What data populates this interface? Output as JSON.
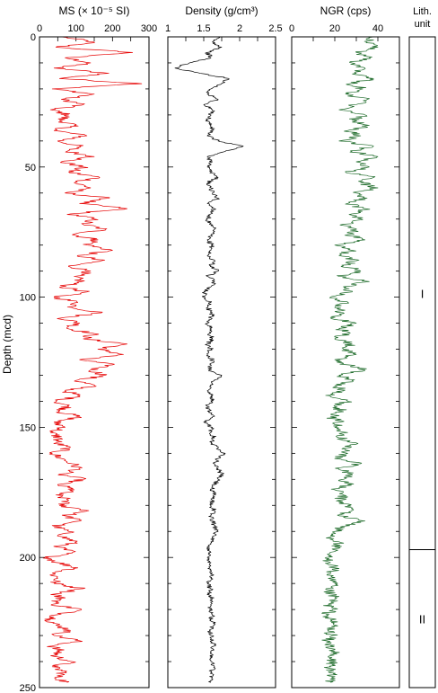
{
  "chart_data": {
    "type": "line",
    "y_axis": {
      "label": "Depth (mcd)",
      "range": [
        0,
        250
      ],
      "ticks": [
        0,
        50,
        100,
        150,
        200,
        250
      ],
      "minor_step": 10,
      "inverted": true
    },
    "panels": [
      {
        "title": "MS (× 10⁻⁵ SI)",
        "xlim": [
          0,
          300
        ],
        "ticks": [
          0,
          100,
          200,
          300
        ],
        "minor_step": 50,
        "color": "#e60000",
        "series": {
          "name": "",
          "depth": [
            0,
            2,
            4,
            6,
            8,
            10,
            12,
            14,
            16,
            18,
            20,
            22,
            24,
            26,
            28,
            30,
            32,
            34,
            36,
            38,
            40,
            42,
            44,
            46,
            48,
            50,
            52,
            54,
            56,
            58,
            60,
            62,
            64,
            66,
            68,
            70,
            72,
            74,
            76,
            78,
            80,
            82,
            84,
            86,
            88,
            90,
            92,
            94,
            96,
            98,
            100,
            102,
            104,
            106,
            108,
            110,
            112,
            114,
            116,
            118,
            120,
            122,
            124,
            126,
            128,
            130,
            132,
            134,
            136,
            138,
            140,
            142,
            144,
            146,
            148,
            150,
            152,
            154,
            156,
            158,
            160,
            162,
            164,
            166,
            168,
            170,
            172,
            174,
            176,
            178,
            180,
            182,
            184,
            186,
            188,
            190,
            192,
            194,
            196,
            198,
            200,
            202,
            204,
            206,
            208,
            210,
            212,
            214,
            216,
            218,
            220,
            222,
            224,
            226,
            228,
            230,
            232,
            234,
            236,
            238,
            240,
            242,
            244,
            246,
            248
          ],
          "values": [
            60,
            150,
            45,
            255,
            70,
            140,
            40,
            190,
            55,
            280,
            35,
            150,
            60,
            120,
            30,
            80,
            55,
            95,
            40,
            130,
            50,
            110,
            75,
            150,
            60,
            120,
            80,
            165,
            95,
            140,
            70,
            190,
            110,
            240,
            85,
            150,
            120,
            180,
            90,
            160,
            130,
            200,
            105,
            170,
            80,
            140,
            95,
            115,
            60,
            130,
            40,
            105,
            90,
            170,
            60,
            110,
            75,
            150,
            120,
            240,
            160,
            230,
            110,
            200,
            140,
            180,
            100,
            150,
            70,
            110,
            45,
            80,
            55,
            110,
            40,
            70,
            30,
            55,
            45,
            80,
            35,
            60,
            90,
            110,
            55,
            120,
            50,
            95,
            45,
            80,
            55,
            135,
            70,
            110,
            40,
            80,
            60,
            100,
            50,
            90,
            25,
            50,
            105,
            35,
            50,
            40,
            120,
            45,
            60,
            35,
            115,
            50,
            30,
            45,
            85,
            40,
            110,
            35,
            55,
            40,
            90,
            35,
            70,
            45,
            75
          ]
        }
      },
      {
        "title": "Density (g/cm³)",
        "xlim": [
          1,
          2.5
        ],
        "ticks": [
          1,
          1.5,
          2,
          2.5
        ],
        "minor_step": 0.25,
        "color": "#000000",
        "series": {
          "name": "",
          "depth": [
            0,
            2,
            4,
            6,
            8,
            10,
            12,
            14,
            16,
            18,
            20,
            22,
            24,
            26,
            28,
            30,
            32,
            34,
            36,
            38,
            40,
            42,
            44,
            46,
            48,
            50,
            52,
            54,
            56,
            58,
            60,
            62,
            64,
            66,
            68,
            70,
            72,
            74,
            76,
            78,
            80,
            82,
            84,
            86,
            88,
            90,
            92,
            94,
            96,
            98,
            100,
            102,
            104,
            106,
            108,
            110,
            112,
            114,
            116,
            118,
            120,
            122,
            124,
            126,
            128,
            130,
            132,
            134,
            136,
            138,
            140,
            142,
            144,
            146,
            148,
            150,
            152,
            154,
            156,
            158,
            160,
            162,
            164,
            166,
            168,
            170,
            172,
            174,
            176,
            178,
            180,
            182,
            184,
            186,
            188,
            190,
            192,
            194,
            196,
            198,
            200,
            202,
            204,
            206,
            208,
            210,
            212,
            214,
            216,
            218,
            220,
            222,
            224,
            226,
            228,
            230,
            232,
            234,
            236,
            238,
            240,
            242,
            244,
            246,
            248
          ],
          "values": [
            1.7,
            1.62,
            1.75,
            1.55,
            1.6,
            1.3,
            1.1,
            1.45,
            1.85,
            1.75,
            1.6,
            1.55,
            1.7,
            1.5,
            1.62,
            1.6,
            1.55,
            1.6,
            1.62,
            1.55,
            1.7,
            2.05,
            1.8,
            1.55,
            1.62,
            1.55,
            1.6,
            1.7,
            1.55,
            1.6,
            1.62,
            1.7,
            1.55,
            1.65,
            1.6,
            1.55,
            1.58,
            1.65,
            1.6,
            1.55,
            1.62,
            1.6,
            1.55,
            1.65,
            1.6,
            1.7,
            1.55,
            1.65,
            1.6,
            1.52,
            1.5,
            1.6,
            1.55,
            1.62,
            1.6,
            1.55,
            1.6,
            1.58,
            1.62,
            1.55,
            1.6,
            1.55,
            1.62,
            1.6,
            1.58,
            1.75,
            1.65,
            1.6,
            1.55,
            1.62,
            1.6,
            1.55,
            1.58,
            1.62,
            1.5,
            1.62,
            1.6,
            1.65,
            1.6,
            1.7,
            1.8,
            1.7,
            1.65,
            1.7,
            1.75,
            1.7,
            1.65,
            1.6,
            1.65,
            1.62,
            1.6,
            1.65,
            1.6,
            1.62,
            1.65,
            1.7,
            1.62,
            1.6,
            1.55,
            1.6,
            1.55,
            1.6,
            1.58,
            1.62,
            1.6,
            1.55,
            1.6,
            1.58,
            1.62,
            1.6,
            1.58,
            1.62,
            1.6,
            1.65,
            1.58,
            1.62,
            1.6,
            1.65,
            1.6,
            1.62,
            1.6,
            1.65,
            1.6,
            1.62,
            1.6
          ]
        }
      },
      {
        "title": "NGR (cps)",
        "xlim": [
          0,
          50
        ],
        "ticks": [
          0,
          20,
          40
        ],
        "minor_step": 10,
        "color": "#1e6b2a",
        "series": {
          "name": "",
          "depth": [
            0,
            2,
            4,
            6,
            8,
            10,
            12,
            14,
            16,
            18,
            20,
            22,
            24,
            26,
            28,
            30,
            32,
            34,
            36,
            38,
            40,
            42,
            44,
            46,
            48,
            50,
            52,
            54,
            56,
            58,
            60,
            62,
            64,
            66,
            68,
            70,
            72,
            74,
            76,
            78,
            80,
            82,
            84,
            86,
            88,
            90,
            92,
            94,
            96,
            98,
            100,
            102,
            104,
            106,
            108,
            110,
            112,
            114,
            116,
            118,
            120,
            122,
            124,
            126,
            128,
            130,
            132,
            134,
            136,
            138,
            140,
            142,
            144,
            146,
            148,
            150,
            152,
            154,
            156,
            158,
            160,
            162,
            164,
            166,
            168,
            170,
            172,
            174,
            176,
            178,
            180,
            182,
            184,
            186,
            188,
            190,
            192,
            194,
            196,
            198,
            200,
            202,
            204,
            206,
            208,
            210,
            212,
            214,
            216,
            218,
            220,
            222,
            224,
            226,
            228,
            230,
            232,
            234,
            236,
            238,
            240,
            242,
            244,
            246,
            248
          ],
          "values": [
            38,
            35,
            40,
            30,
            36,
            28,
            34,
            30,
            38,
            27,
            33,
            25,
            35,
            30,
            22,
            34,
            28,
            36,
            26,
            32,
            22,
            38,
            28,
            40,
            30,
            36,
            25,
            38,
            32,
            40,
            30,
            35,
            26,
            34,
            28,
            32,
            24,
            30,
            26,
            34,
            20,
            28,
            22,
            30,
            24,
            32,
            22,
            36,
            24,
            28,
            18,
            26,
            20,
            24,
            18,
            30,
            22,
            26,
            20,
            28,
            24,
            30,
            20,
            26,
            34,
            22,
            28,
            20,
            24,
            18,
            26,
            20,
            24,
            18,
            22,
            20,
            26,
            22,
            30,
            24,
            26,
            20,
            32,
            22,
            28,
            24,
            26,
            20,
            24,
            22,
            26,
            28,
            22,
            34,
            24,
            20,
            18,
            22,
            20,
            18,
            16,
            18,
            20,
            18,
            17,
            20,
            16,
            18,
            20,
            17,
            19,
            16,
            18,
            20,
            17,
            19,
            16,
            18,
            20,
            17,
            19,
            18,
            17,
            19,
            18
          ]
        }
      }
    ],
    "lith_units": {
      "header": [
        "Lith.",
        "unit"
      ],
      "units": [
        {
          "label": "I",
          "top": 0,
          "bottom": 197
        },
        {
          "label": "II",
          "top": 197,
          "bottom": 250
        }
      ]
    }
  }
}
